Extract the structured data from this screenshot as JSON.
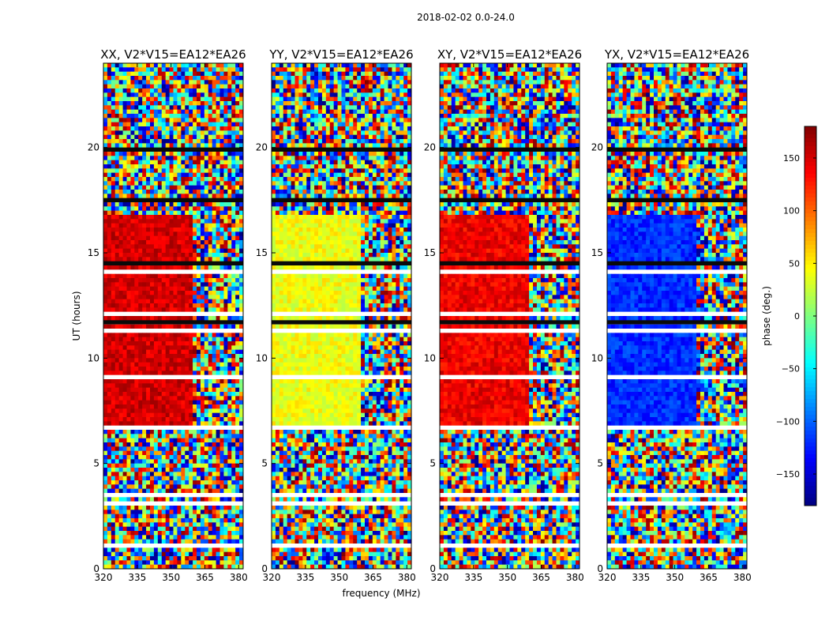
{
  "suptitle": "2018-02-02 0.0-24.0",
  "chart_data": {
    "type": "heatmap",
    "xlabel": "frequency (MHz)",
    "ylabel": "UT (hours)",
    "xlim": [
      320,
      382
    ],
    "ylim": [
      0,
      24
    ],
    "xticks": [
      320,
      335,
      350,
      365,
      380
    ],
    "yticks": [
      0,
      5,
      10,
      15,
      20
    ],
    "panels": [
      {
        "title": "XX, V2*V15=EA12*EA26",
        "coherent_phase_deg": 150,
        "coherent_freq_end_MHz": 360
      },
      {
        "title": "YY, V2*V15=EA12*EA26",
        "coherent_phase_deg": 40,
        "coherent_freq_end_MHz": 360
      },
      {
        "title": "XY, V2*V15=EA12*EA26",
        "coherent_phase_deg": 140,
        "coherent_freq_end_MHz": 360
      },
      {
        "title": "YX, V2*V15=EA12*EA26",
        "coherent_phase_deg": -120,
        "coherent_freq_end_MHz": 360
      }
    ],
    "coherent_ut_range": [
      6.8,
      16.8
    ],
    "colorbar": {
      "label": "phase (deg.)",
      "range": [
        -180,
        180
      ],
      "ticks": [
        -150,
        -100,
        -50,
        0,
        50,
        100,
        150
      ],
      "tick_labels": [
        "−150",
        "−100",
        "−50",
        "0",
        "50",
        "100",
        "150"
      ],
      "colormap": "jet"
    }
  }
}
